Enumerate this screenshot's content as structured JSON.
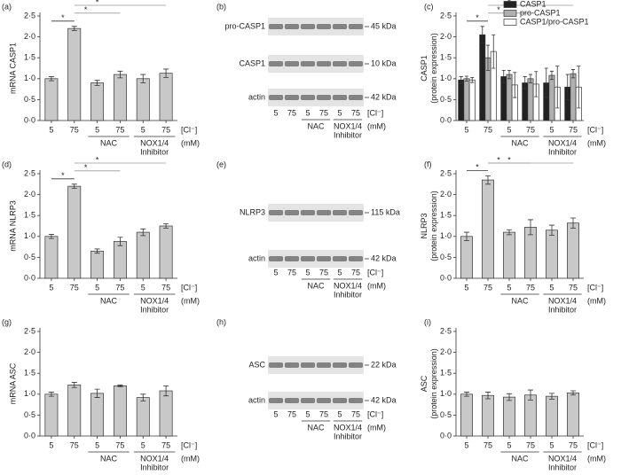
{
  "chart_data": [
    {
      "type": "bar",
      "panel": "(a)",
      "ylabel": [
        "mRNA CASP1"
      ],
      "categories": [
        "5",
        "75",
        "5",
        "75",
        "5",
        "75"
      ],
      "series": [
        {
          "color": "#c8c8c8",
          "values": [
            1.0,
            2.2,
            0.9,
            1.1,
            1.0,
            1.13
          ],
          "errors": [
            0.05,
            0.05,
            0.06,
            0.08,
            0.1,
            0.1
          ]
        }
      ],
      "ylim": [
        0,
        2.5
      ],
      "yticks": [
        {
          "value": 0,
          "label": "0·0"
        },
        {
          "value": 0.5,
          "label": "0·5"
        },
        {
          "value": 1,
          "label": "1·0"
        },
        {
          "value": 1.5,
          "label": "1·5"
        },
        {
          "value": 2,
          "label": "2·0"
        },
        {
          "value": 2.5,
          "label": "2·5"
        }
      ],
      "groups": [
        {
          "label": "NAC",
          "span": [
            2,
            3
          ]
        },
        {
          "label": "NOX1/4",
          "note": "Inhibitor",
          "span": [
            4,
            5
          ]
        }
      ],
      "unit_label": "[Cl⁻]",
      "unit": "(mM)",
      "significance": [
        {
          "label": "*",
          "pair": [
            0,
            1
          ]
        },
        {
          "label": "*",
          "pair": [
            1,
            3
          ]
        },
        {
          "label": "*",
          "pair": [
            1,
            5
          ]
        }
      ]
    },
    {
      "type": "bar",
      "panel": "(c)",
      "ylabel": [
        "CASP1",
        "(protein expression)"
      ],
      "categories": [
        "5",
        "75",
        "5",
        "75",
        "5",
        "75"
      ],
      "series": [
        {
          "name": "CASP1",
          "color": "#222222",
          "values": [
            0.97,
            2.05,
            1.05,
            0.9,
            0.9,
            0.8
          ],
          "errors": [
            0.08,
            0.2,
            0.15,
            0.15,
            0.35,
            0.3
          ]
        },
        {
          "name": "pro-CASP1",
          "color": "#b0b0b0",
          "values": [
            1.0,
            1.5,
            1.1,
            1.0,
            1.08,
            1.12
          ],
          "errors": [
            0.06,
            0.3,
            0.1,
            0.1,
            0.1,
            0.1
          ]
        },
        {
          "name": "CASP1/pro-CASP1",
          "color": "#ffffff",
          "values": [
            0.97,
            1.65,
            0.85,
            0.87,
            0.8,
            0.8
          ],
          "errors": [
            0.06,
            0.4,
            0.3,
            0.3,
            0.5,
            0.5
          ]
        }
      ],
      "legend": "upper right",
      "ylim": [
        0,
        2.5
      ],
      "yticks": [
        {
          "value": 0,
          "label": "0·0"
        },
        {
          "value": 0.5,
          "label": "0·5"
        },
        {
          "value": 1,
          "label": "1·0"
        },
        {
          "value": 1.5,
          "label": "1·5"
        },
        {
          "value": 2,
          "label": "2·0"
        },
        {
          "value": 2.5,
          "label": "2·5"
        }
      ],
      "groups": [
        {
          "label": "NAC",
          "span": [
            2,
            3
          ]
        },
        {
          "label": "NOX1/4",
          "note": "Inhibitor",
          "span": [
            4,
            5
          ]
        }
      ],
      "unit_label": "[Cl⁻]",
      "unit": "(mM)",
      "significance": [
        {
          "label": "*",
          "pair": [
            0,
            1
          ]
        },
        {
          "label": "*",
          "pair": [
            1,
            3
          ]
        },
        {
          "label": "*",
          "pair": [
            1,
            5
          ]
        }
      ]
    },
    {
      "type": "bar",
      "panel": "(d)",
      "ylabel": [
        "mRNA NLRP3"
      ],
      "categories": [
        "5",
        "75",
        "5",
        "75",
        "5",
        "75"
      ],
      "series": [
        {
          "color": "#c8c8c8",
          "values": [
            1.0,
            2.2,
            0.65,
            0.88,
            1.1,
            1.25
          ],
          "errors": [
            0.05,
            0.05,
            0.05,
            0.1,
            0.08,
            0.05
          ]
        }
      ],
      "ylim": [
        0,
        2.5
      ],
      "yticks": [
        {
          "value": 0,
          "label": "0·0"
        },
        {
          "value": 0.5,
          "label": "0·5"
        },
        {
          "value": 1,
          "label": "1·0"
        },
        {
          "value": 1.5,
          "label": "1·5"
        },
        {
          "value": 2,
          "label": "2·0"
        },
        {
          "value": 2.5,
          "label": "2·5"
        }
      ],
      "groups": [
        {
          "label": "NAC",
          "span": [
            2,
            3
          ]
        },
        {
          "label": "NOX1/4",
          "note": "Inhibitor",
          "span": [
            4,
            5
          ]
        }
      ],
      "unit_label": "[Cl⁻]",
      "unit": "(mM)",
      "significance": [
        {
          "label": "*",
          "pair": [
            0,
            1
          ]
        },
        {
          "label": "*",
          "pair": [
            1,
            3
          ]
        },
        {
          "label": "*",
          "pair": [
            1,
            5
          ]
        }
      ]
    },
    {
      "type": "bar",
      "panel": "(f)",
      "ylabel": [
        "NLRP3",
        "(protein expression)"
      ],
      "categories": [
        "5",
        "75",
        "5",
        "75",
        "5",
        "75"
      ],
      "series": [
        {
          "color": "#c8c8c8",
          "values": [
            1.0,
            2.35,
            1.1,
            1.22,
            1.15,
            1.32
          ],
          "errors": [
            0.1,
            0.1,
            0.06,
            0.18,
            0.12,
            0.12
          ]
        }
      ],
      "ylim": [
        0,
        2.5
      ],
      "yticks": [
        {
          "value": 0,
          "label": "0·0"
        },
        {
          "value": 0.5,
          "label": "0·5"
        },
        {
          "value": 1,
          "label": "1·0"
        },
        {
          "value": 1.5,
          "label": "1·5"
        },
        {
          "value": 2,
          "label": "2·0"
        },
        {
          "value": 2.5,
          "label": "2·5"
        }
      ],
      "groups": [
        {
          "label": "NAC",
          "span": [
            2,
            3
          ]
        },
        {
          "label": "NOX1/4",
          "note": "Inhibitor",
          "span": [
            4,
            5
          ]
        }
      ],
      "unit_label": "[Cl⁻]",
      "unit": "(mM)",
      "significance": [
        {
          "label": "*",
          "pair": [
            0,
            1
          ]
        },
        {
          "label": "*",
          "pair": [
            1,
            3
          ]
        },
        {
          "label": "*",
          "pair": [
            1,
            5
          ]
        }
      ]
    },
    {
      "type": "bar",
      "panel": "(g)",
      "ylabel": [
        "mRNA ASC"
      ],
      "categories": [
        "5",
        "75",
        "5",
        "75",
        "5",
        "75"
      ],
      "series": [
        {
          "color": "#c8c8c8",
          "values": [
            1.0,
            1.22,
            1.02,
            1.2,
            0.92,
            1.08
          ],
          "errors": [
            0.05,
            0.06,
            0.1,
            0.02,
            0.08,
            0.12
          ]
        }
      ],
      "ylim": [
        0,
        2.5
      ],
      "yticks": [
        {
          "value": 0,
          "label": "0·0"
        },
        {
          "value": 0.5,
          "label": "0·5"
        },
        {
          "value": 1,
          "label": "1·0"
        },
        {
          "value": 1.5,
          "label": "1·5"
        },
        {
          "value": 2,
          "label": "2·0"
        },
        {
          "value": 2.5,
          "label": "2·5"
        }
      ],
      "groups": [
        {
          "label": "NAC",
          "span": [
            2,
            3
          ]
        },
        {
          "label": "NOX1/4",
          "note": "Inhibitor",
          "span": [
            4,
            5
          ]
        }
      ],
      "unit_label": "[Cl⁻]",
      "unit": "(mM)",
      "significance": []
    },
    {
      "type": "bar",
      "panel": "(i)",
      "ylabel": [
        "ASC",
        "(protein expression)"
      ],
      "categories": [
        "5",
        "75",
        "5",
        "75",
        "5",
        "75"
      ],
      "series": [
        {
          "color": "#c8c8c8",
          "values": [
            1.0,
            0.97,
            0.93,
            0.98,
            0.95,
            1.03
          ],
          "errors": [
            0.05,
            0.08,
            0.08,
            0.12,
            0.07,
            0.05
          ]
        }
      ],
      "ylim": [
        0,
        2.5
      ],
      "yticks": [
        {
          "value": 0,
          "label": "0·0"
        },
        {
          "value": 0.5,
          "label": "0·5"
        },
        {
          "value": 1,
          "label": "1·0"
        },
        {
          "value": 1.5,
          "label": "1·5"
        },
        {
          "value": 2,
          "label": "2·0"
        },
        {
          "value": 2.5,
          "label": "2·5"
        }
      ],
      "groups": [
        {
          "label": "NAC",
          "span": [
            2,
            3
          ]
        },
        {
          "label": "NOX1/4",
          "note": "Inhibitor",
          "span": [
            4,
            5
          ]
        }
      ],
      "unit_label": "[Cl⁻]",
      "unit": "(mM)",
      "significance": []
    }
  ],
  "blots": [
    {
      "panel": "(b)",
      "rows": [
        {
          "label": "pro-CASP1",
          "size": "45 kDa"
        },
        {
          "label": "CASP1",
          "size": "10 kDa"
        },
        {
          "label": "actin",
          "size": "42 kDa"
        }
      ],
      "lanes": [
        "5",
        "75",
        "5",
        "75",
        "5",
        "75"
      ],
      "groups": [
        {
          "label": "NAC",
          "span": [
            2,
            3
          ]
        },
        {
          "label": "NOX1/4",
          "note": "Inhibitor",
          "span": [
            4,
            5
          ]
        }
      ],
      "unit_label": "[Cl⁻]",
      "unit": "(mM)"
    },
    {
      "panel": "(e)",
      "rows": [
        {
          "label": "NLRP3",
          "size": "115 kDa"
        },
        {
          "label": "actin",
          "size": "42 kDa"
        }
      ],
      "lanes": [
        "5",
        "75",
        "5",
        "75",
        "5",
        "75"
      ],
      "groups": [
        {
          "label": "NAC",
          "span": [
            2,
            3
          ]
        },
        {
          "label": "NOX1/4",
          "note": "Inhibitor",
          "span": [
            4,
            5
          ]
        }
      ],
      "unit_label": "[Cl⁻]",
      "unit": "(mM)"
    },
    {
      "panel": "(h)",
      "rows": [
        {
          "label": "ASC",
          "size": "22 kDa"
        },
        {
          "label": "actin",
          "size": "42 kDa"
        }
      ],
      "lanes": [
        "5",
        "75",
        "5",
        "75",
        "5",
        "75"
      ],
      "groups": [
        {
          "label": "NAC",
          "span": [
            2,
            3
          ]
        },
        {
          "label": "NOX1/4",
          "note": "Inhibitor",
          "span": [
            4,
            5
          ]
        }
      ],
      "unit_label": "[Cl⁻]",
      "unit": "(mM)"
    }
  ]
}
